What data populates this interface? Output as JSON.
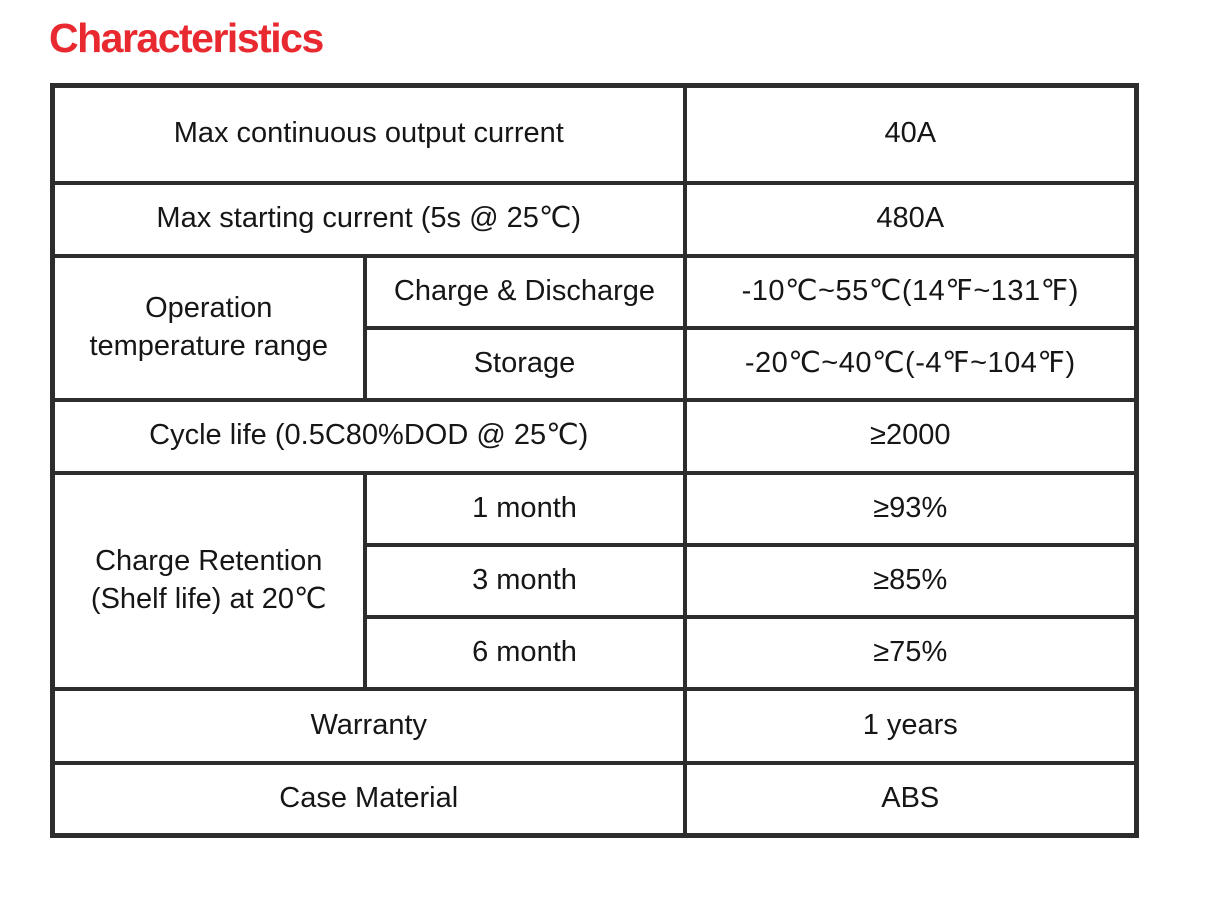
{
  "page": {
    "title": "Characteristics",
    "title_color": "#e8292f"
  },
  "table": {
    "max_continuous": {
      "label": "Max continuous output current",
      "value": "40A"
    },
    "max_starting": {
      "label": "Max starting current (5s @ 25℃)",
      "value": "480A"
    },
    "operation_temp": {
      "label": "Operation temperature range",
      "rows": [
        {
          "label": "Charge & Discharge",
          "value": "-10℃~55℃(14℉~131℉)"
        },
        {
          "label": "Storage",
          "value": "-20℃~40℃(-4℉~104℉)"
        }
      ]
    },
    "cycle_life": {
      "label": "Cycle life (0.5C80%DOD @ 25℃)",
      "value": "≥2000"
    },
    "charge_retention": {
      "label": "Charge Retention (Shelf life) at 20℃",
      "rows": [
        {
          "label": "1 month",
          "value": "≥93%"
        },
        {
          "label": "3 month",
          "value": "≥85%"
        },
        {
          "label": "6 month",
          "value": "≥75%"
        }
      ]
    },
    "warranty": {
      "label": "Warranty",
      "value": "1 years"
    },
    "case_material": {
      "label": "Case Material",
      "value": "ABS"
    }
  }
}
